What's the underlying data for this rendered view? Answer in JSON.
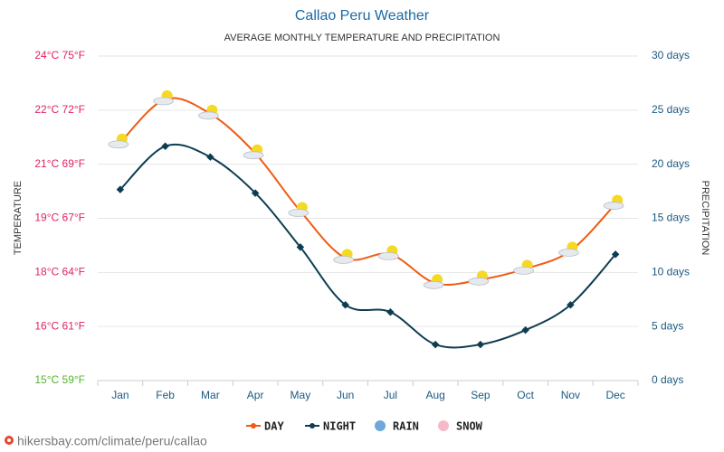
{
  "chart_data": {
    "type": "line",
    "title": "Callao Peru Weather",
    "subtitle": "AVERAGE MONTHLY TEMPERATURE AND PRECIPITATION",
    "ylabel": "TEMPERATURE",
    "y2label": "PRECIPITATION",
    "footer": "hikersbay.com/climate/peru/callao",
    "categories": [
      "Jan",
      "Feb",
      "Mar",
      "Apr",
      "May",
      "Jun",
      "Jul",
      "Aug",
      "Sep",
      "Oct",
      "Nov",
      "Dec"
    ],
    "ylim": [
      15,
      24
    ],
    "yticks": [
      {
        "value": 24,
        "label": "24°C 75°F"
      },
      {
        "value": 22.5,
        "label": "22°C 72°F"
      },
      {
        "value": 21,
        "label": "21°C 69°F"
      },
      {
        "value": 19.5,
        "label": "19°C 67°F"
      },
      {
        "value": 18,
        "label": "18°C 64°F"
      },
      {
        "value": 16.5,
        "label": "16°C 61°F"
      },
      {
        "value": 15,
        "label": "15°C 59°F"
      }
    ],
    "ytick_colors": [
      "#e0245e",
      "#e0245e",
      "#e0245e",
      "#e0245e",
      "#e0245e",
      "#e0245e",
      "#52b52e"
    ],
    "y2lim": [
      0,
      30
    ],
    "y2ticks": [
      {
        "value": 30,
        "label": "30 days"
      },
      {
        "value": 25,
        "label": "25 days"
      },
      {
        "value": 20,
        "label": "20 days"
      },
      {
        "value": 15,
        "label": "15 days"
      },
      {
        "value": 10,
        "label": "10 days"
      },
      {
        "value": 5,
        "label": "5 days"
      },
      {
        "value": 0,
        "label": "0 days"
      }
    ],
    "grid": true,
    "series": [
      {
        "name": "DAY",
        "color": "#ef5b13",
        "values": [
          21.6,
          22.8,
          22.4,
          21.3,
          19.7,
          18.4,
          18.5,
          17.7,
          17.8,
          18.1,
          18.6,
          19.9
        ]
      },
      {
        "name": "NIGHT",
        "color": "#0e3d52",
        "values": [
          20.3,
          21.5,
          21.2,
          20.2,
          18.7,
          17.1,
          16.9,
          16.0,
          16.0,
          16.4,
          17.1,
          18.5
        ]
      },
      {
        "name": "RAIN",
        "color": "#6ea8dc",
        "axis": "y2",
        "kind": "bar",
        "values": [
          0,
          0,
          0,
          0,
          0,
          0,
          0,
          0,
          0,
          0,
          0,
          0
        ]
      },
      {
        "name": "SNOW",
        "color": "#f7b9c9",
        "axis": "y2",
        "kind": "bar",
        "values": [
          0,
          0,
          0,
          0,
          0,
          0,
          0,
          0,
          0,
          0,
          0,
          0
        ]
      }
    ]
  }
}
